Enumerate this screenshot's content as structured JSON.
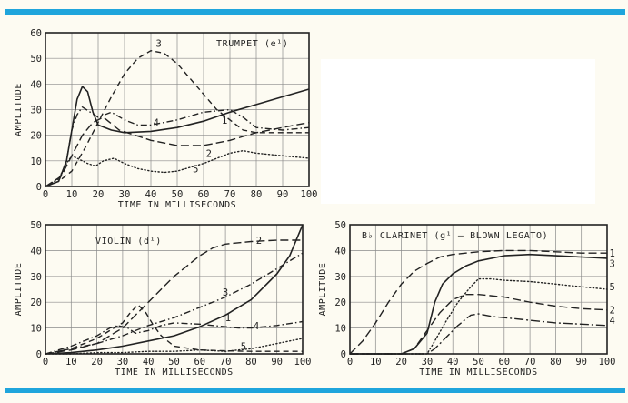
{
  "layout": {
    "background": "#fdfbf2",
    "rule_color": "#1fa5dc",
    "ink": "#222222"
  },
  "chart_data": [
    {
      "type": "line",
      "title": "TRUMPET (e¹)",
      "xlabel": "TIME IN MILLISECONDS",
      "ylabel": "AMPLITUDE",
      "xlim": [
        0,
        100
      ],
      "ylim": [
        0,
        60
      ],
      "xticks": [
        0,
        10,
        20,
        30,
        40,
        50,
        60,
        70,
        80,
        90,
        100
      ],
      "yticks": [
        0,
        10,
        20,
        30,
        40,
        50,
        60
      ],
      "grid": true,
      "series": [
        {
          "name": "1",
          "style": "solid",
          "label_at": [
            68,
            26
          ],
          "points": [
            [
              0,
              0
            ],
            [
              5,
              2
            ],
            [
              8,
              10
            ],
            [
              10,
              22
            ],
            [
              12,
              34
            ],
            [
              14,
              39
            ],
            [
              16,
              37
            ],
            [
              18,
              29
            ],
            [
              20,
              24
            ],
            [
              25,
              22
            ],
            [
              30,
              21
            ],
            [
              40,
              21.5
            ],
            [
              50,
              23
            ],
            [
              60,
              25.5
            ],
            [
              70,
              29
            ],
            [
              80,
              32
            ],
            [
              90,
              35
            ],
            [
              100,
              38
            ]
          ]
        },
        {
          "name": "2",
          "style": "long-dash",
          "label_at": [
            62,
            13
          ],
          "points": [
            [
              0,
              0
            ],
            [
              6,
              4
            ],
            [
              10,
              12
            ],
            [
              14,
              20
            ],
            [
              18,
              25
            ],
            [
              22,
              27
            ],
            [
              28,
              22
            ],
            [
              40,
              18
            ],
            [
              50,
              16
            ],
            [
              60,
              16
            ],
            [
              70,
              18
            ],
            [
              80,
              21
            ],
            [
              90,
              23
            ],
            [
              100,
              25
            ]
          ]
        },
        {
          "name": "3",
          "style": "dash",
          "label_at": [
            43,
            56
          ],
          "points": [
            [
              0,
              0
            ],
            [
              5,
              2
            ],
            [
              10,
              6
            ],
            [
              15,
              15
            ],
            [
              20,
              25
            ],
            [
              25,
              35
            ],
            [
              30,
              44
            ],
            [
              35,
              50
            ],
            [
              40,
              53
            ],
            [
              45,
              52
            ],
            [
              50,
              48
            ],
            [
              55,
              42
            ],
            [
              60,
              36
            ],
            [
              65,
              30
            ],
            [
              70,
              26
            ],
            [
              75,
              22
            ],
            [
              80,
              21
            ],
            [
              90,
              21
            ],
            [
              100,
              21
            ]
          ]
        },
        {
          "name": "4",
          "style": "dash-dot",
          "label_at": [
            42,
            25
          ],
          "points": [
            [
              0,
              0
            ],
            [
              5,
              2
            ],
            [
              8,
              10
            ],
            [
              10,
              22
            ],
            [
              12,
              28
            ],
            [
              14,
              31
            ],
            [
              17,
              29
            ],
            [
              20,
              27
            ],
            [
              25,
              29
            ],
            [
              30,
              26
            ],
            [
              35,
              24
            ],
            [
              40,
              24
            ],
            [
              50,
              26
            ],
            [
              60,
              29
            ],
            [
              70,
              30
            ],
            [
              75,
              27
            ],
            [
              80,
              23
            ],
            [
              90,
              22
            ],
            [
              100,
              23
            ]
          ]
        },
        {
          "name": "5",
          "style": "dotted",
          "label_at": [
            57,
            7
          ],
          "points": [
            [
              0,
              0
            ],
            [
              5,
              3
            ],
            [
              8,
              9
            ],
            [
              10,
              12
            ],
            [
              12,
              11
            ],
            [
              14,
              10
            ],
            [
              16,
              9
            ],
            [
              19,
              8
            ],
            [
              22,
              10
            ],
            [
              26,
              11
            ],
            [
              30,
              9
            ],
            [
              35,
              7
            ],
            [
              40,
              6
            ],
            [
              45,
              5.5
            ],
            [
              50,
              6
            ],
            [
              60,
              9
            ],
            [
              70,
              13
            ],
            [
              75,
              14
            ],
            [
              80,
              13
            ],
            [
              90,
              12
            ],
            [
              100,
              11
            ]
          ]
        }
      ]
    },
    {
      "type": "line",
      "title": "VIOLIN (d¹)",
      "xlabel": "TIME IN MILLISECONDS",
      "ylabel": "AMPLITUDE",
      "xlim": [
        0,
        100
      ],
      "ylim": [
        0,
        50
      ],
      "xticks": [
        0,
        10,
        20,
        30,
        40,
        50,
        60,
        70,
        80,
        90,
        100
      ],
      "yticks": [
        0,
        10,
        20,
        30,
        40,
        50
      ],
      "grid": true,
      "series": [
        {
          "name": "1",
          "style": "solid",
          "label_at": [
            71,
            14
          ],
          "points": [
            [
              0,
              0
            ],
            [
              10,
              0.5
            ],
            [
              20,
              1.5
            ],
            [
              30,
              3
            ],
            [
              40,
              5
            ],
            [
              50,
              7
            ],
            [
              60,
              10.5
            ],
            [
              70,
              15
            ],
            [
              80,
              21
            ],
            [
              90,
              31
            ],
            [
              95,
              38
            ],
            [
              100,
              50
            ]
          ]
        },
        {
          "name": "2",
          "style": "long-dash",
          "label_at": [
            83,
            44
          ],
          "points": [
            [
              0,
              0
            ],
            [
              10,
              1.5
            ],
            [
              20,
              4
            ],
            [
              30,
              10
            ],
            [
              35,
              15
            ],
            [
              40,
              20
            ],
            [
              50,
              30
            ],
            [
              60,
              38
            ],
            [
              65,
              41
            ],
            [
              70,
              42.5
            ],
            [
              80,
              43.5
            ],
            [
              90,
              44
            ],
            [
              100,
              44
            ]
          ]
        },
        {
          "name": "3",
          "style": "dash-dot",
          "label_at": [
            70,
            24
          ],
          "points": [
            [
              0,
              0
            ],
            [
              10,
              2
            ],
            [
              20,
              4
            ],
            [
              30,
              7
            ],
            [
              35,
              9
            ],
            [
              40,
              11
            ],
            [
              50,
              14
            ],
            [
              60,
              18
            ],
            [
              70,
              22
            ],
            [
              80,
              27
            ],
            [
              90,
              33
            ],
            [
              100,
              39
            ]
          ]
        },
        {
          "name": "4",
          "style": "dash-dot",
          "label_at": [
            82,
            11
          ],
          "points": [
            [
              0,
              0
            ],
            [
              10,
              3
            ],
            [
              20,
              7
            ],
            [
              25,
              10
            ],
            [
              28,
              11
            ],
            [
              32,
              10
            ],
            [
              35,
              8
            ],
            [
              40,
              9
            ],
            [
              45,
              11
            ],
            [
              50,
              12
            ],
            [
              60,
              11.5
            ],
            [
              70,
              10.5
            ],
            [
              75,
              10
            ],
            [
              80,
              10
            ],
            [
              90,
              11
            ],
            [
              100,
              12.5
            ]
          ]
        },
        {
          "name": "5",
          "style": "dotted",
          "label_at": [
            77,
            3
          ],
          "points": [
            [
              0,
              0
            ],
            [
              10,
              0
            ],
            [
              20,
              0.5
            ],
            [
              30,
              0.5
            ],
            [
              40,
              1
            ],
            [
              50,
              1
            ],
            [
              60,
              1.5
            ],
            [
              70,
              1
            ],
            [
              80,
              2
            ],
            [
              90,
              4
            ],
            [
              100,
              6
            ]
          ]
        },
        {
          "name": "",
          "style": "dash",
          "label_at": null,
          "points": [
            [
              0,
              0
            ],
            [
              10,
              2
            ],
            [
              20,
              6
            ],
            [
              25,
              9
            ],
            [
              30,
              12
            ],
            [
              33,
              16
            ],
            [
              36,
              19
            ],
            [
              39,
              16
            ],
            [
              42,
              11
            ],
            [
              45,
              7
            ],
            [
              50,
              3
            ],
            [
              60,
              1.5
            ],
            [
              70,
              1.2
            ],
            [
              80,
              1
            ],
            [
              100,
              1
            ]
          ]
        }
      ]
    },
    {
      "type": "line",
      "title": "B♭ CLARINET (g¹ – BLOWN LEGATO)",
      "xlabel": "TIME IN MILLISECONDS",
      "ylabel": "AMPLITUDE",
      "xlim": [
        0,
        100
      ],
      "ylim": [
        0,
        50
      ],
      "xticks": [
        0,
        10,
        20,
        30,
        40,
        50,
        60,
        70,
        80,
        90,
        100
      ],
      "yticks": [
        0,
        10,
        20,
        30,
        40,
        50
      ],
      "grid": true,
      "series": [
        {
          "name": "1",
          "style": "long-dash",
          "label_at": [
            102,
            39
          ],
          "points": [
            [
              0,
              0
            ],
            [
              5,
              5
            ],
            [
              10,
              12
            ],
            [
              15,
              20
            ],
            [
              20,
              27
            ],
            [
              25,
              32
            ],
            [
              30,
              35
            ],
            [
              35,
              37.5
            ],
            [
              40,
              38.5
            ],
            [
              50,
              39.5
            ],
            [
              60,
              40
            ],
            [
              70,
              40
            ],
            [
              80,
              39.5
            ],
            [
              90,
              39
            ],
            [
              100,
              39
            ]
          ]
        },
        {
          "name": "2",
          "style": "long-dash",
          "label_at": [
            102,
            17
          ],
          "points": [
            [
              0,
              0
            ],
            [
              20,
              0
            ],
            [
              25,
              2
            ],
            [
              30,
              9
            ],
            [
              35,
              16
            ],
            [
              40,
              21
            ],
            [
              45,
              23
            ],
            [
              50,
              23
            ],
            [
              60,
              22
            ],
            [
              70,
              20
            ],
            [
              80,
              18.5
            ],
            [
              90,
              17.5
            ],
            [
              100,
              17
            ]
          ]
        },
        {
          "name": "3",
          "style": "solid",
          "label_at": [
            102,
            35
          ],
          "points": [
            [
              0,
              0
            ],
            [
              20,
              0
            ],
            [
              25,
              2
            ],
            [
              30,
              8
            ],
            [
              33,
              20
            ],
            [
              36,
              27
            ],
            [
              40,
              31
            ],
            [
              45,
              34
            ],
            [
              50,
              36
            ],
            [
              60,
              38
            ],
            [
              70,
              38.5
            ],
            [
              80,
              38
            ],
            [
              90,
              37.5
            ],
            [
              100,
              37
            ]
          ]
        },
        {
          "name": "4",
          "style": "long-dash-dot",
          "label_at": [
            102,
            13
          ],
          "points": [
            [
              0,
              0
            ],
            [
              30,
              0
            ],
            [
              33,
              2
            ],
            [
              37,
              6
            ],
            [
              42,
              11
            ],
            [
              47,
              15
            ],
            [
              50,
              15.5
            ],
            [
              55,
              14.5
            ],
            [
              60,
              14
            ],
            [
              70,
              13
            ],
            [
              80,
              12
            ],
            [
              90,
              11.5
            ],
            [
              100,
              11
            ]
          ]
        },
        {
          "name": "5",
          "style": "dotted",
          "label_at": [
            102,
            26
          ],
          "points": [
            [
              0,
              0
            ],
            [
              30,
              0
            ],
            [
              33,
              5
            ],
            [
              37,
              12
            ],
            [
              42,
              20
            ],
            [
              47,
              26
            ],
            [
              50,
              29
            ],
            [
              55,
              29
            ],
            [
              60,
              28.5
            ],
            [
              70,
              28
            ],
            [
              80,
              27
            ],
            [
              90,
              26
            ],
            [
              100,
              25
            ]
          ]
        }
      ]
    }
  ]
}
